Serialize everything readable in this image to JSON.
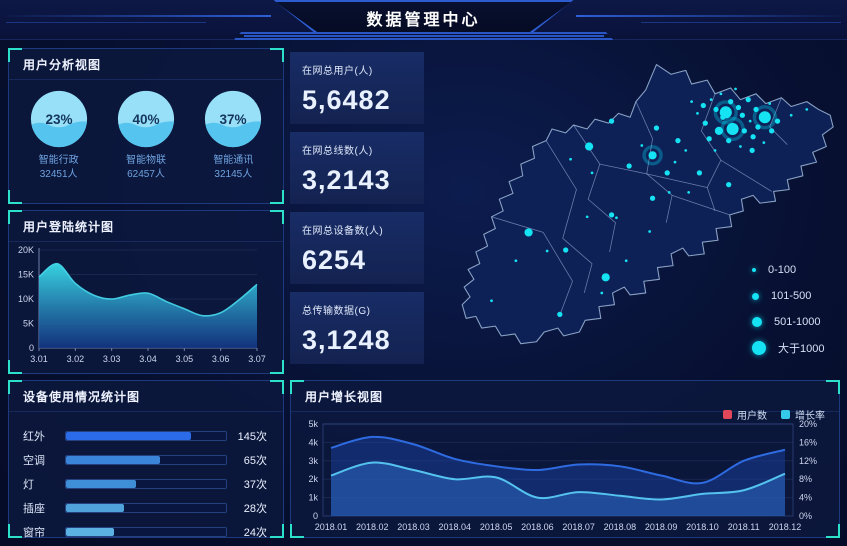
{
  "header": {
    "title": "数据管理中心"
  },
  "panels": {
    "user_analysis": {
      "title": "用户分析视图",
      "gauges": [
        {
          "percent": "23%",
          "name": "智能行政",
          "count": "32451人"
        },
        {
          "percent": "40%",
          "name": "智能物联",
          "count": "62457人"
        },
        {
          "percent": "37%",
          "name": "智能通讯",
          "count": "32145人"
        }
      ],
      "circle_color_top": "#97e0f7",
      "circle_color_wave": "#55c4ee",
      "percent_text_color": "#14365f"
    },
    "login_stats": {
      "title": "用户登陆统计图"
    },
    "device_usage": {
      "title": "设备使用情况统计图"
    },
    "user_growth": {
      "title": "用户增长视图",
      "legend": [
        {
          "label": "用户数",
          "color": "#e0485a"
        },
        {
          "label": "增长率",
          "color": "#35c8e8"
        }
      ]
    }
  },
  "stats": [
    {
      "label": "在网总用户(人)",
      "value": "5,6482"
    },
    {
      "label": "在网总线数(人)",
      "value": "3,2143"
    },
    {
      "label": "在网总设备数(人)",
      "value": "6254"
    },
    {
      "label": "总传输数据(G)",
      "value": "3,1248"
    }
  ],
  "map": {
    "dot_color": "#15e2f2",
    "legend": [
      {
        "label": "0-100",
        "r": 2
      },
      {
        "label": "101-500",
        "r": 3.5
      },
      {
        "label": "501-1000",
        "r": 5
      },
      {
        "label": "大于1000",
        "r": 7
      }
    ],
    "points": [
      [
        268,
        58,
        1
      ],
      [
        274,
        70,
        1
      ],
      [
        280,
        62,
        2
      ],
      [
        282,
        80,
        2
      ],
      [
        286,
        96,
        2
      ],
      [
        288,
        56,
        1
      ],
      [
        292,
        108,
        1
      ],
      [
        293,
        66,
        2
      ],
      [
        296,
        88,
        3
      ],
      [
        298,
        50,
        1
      ],
      [
        300,
        74,
        2
      ],
      [
        303,
        69,
        4,
        1
      ],
      [
        306,
        98,
        2
      ],
      [
        308,
        58,
        2
      ],
      [
        310,
        86,
        4,
        1
      ],
      [
        313,
        45,
        1
      ],
      [
        316,
        64,
        2
      ],
      [
        318,
        104,
        1
      ],
      [
        320,
        72,
        2
      ],
      [
        322,
        88,
        2
      ],
      [
        326,
        56,
        2
      ],
      [
        328,
        78,
        1
      ],
      [
        330,
        108,
        2
      ],
      [
        331,
        94,
        2
      ],
      [
        334,
        66,
        2
      ],
      [
        336,
        84,
        2
      ],
      [
        342,
        100,
        1
      ],
      [
        343,
        74,
        4,
        1
      ],
      [
        348,
        60,
        1
      ],
      [
        350,
        88,
        2
      ],
      [
        356,
        78,
        2
      ],
      [
        370,
        72,
        1
      ],
      [
        386,
        66,
        1
      ],
      [
        186,
        78,
        2
      ],
      [
        217,
        103,
        1
      ],
      [
        228,
        113,
        3,
        1
      ],
      [
        232,
        85,
        2
      ],
      [
        254,
        98,
        2
      ],
      [
        262,
        108,
        1
      ],
      [
        251,
        120,
        1
      ],
      [
        163,
        104,
        3
      ],
      [
        144,
        117,
        1
      ],
      [
        166,
        131,
        1
      ],
      [
        204,
        124,
        2
      ],
      [
        243,
        131,
        2
      ],
      [
        276,
        131,
        2
      ],
      [
        306,
        143,
        2
      ],
      [
        228,
        157,
        2
      ],
      [
        245,
        151,
        1
      ],
      [
        265,
        151,
        1
      ],
      [
        186,
        174,
        2
      ],
      [
        191,
        177,
        1
      ],
      [
        161,
        176,
        1
      ],
      [
        225,
        191,
        1
      ],
      [
        101,
        192,
        3
      ],
      [
        120,
        211,
        1
      ],
      [
        139,
        210,
        2
      ],
      [
        88,
        221,
        1
      ],
      [
        201,
        221,
        1
      ],
      [
        180,
        238,
        3
      ],
      [
        176,
        254,
        1
      ],
      [
        63,
        262,
        1
      ],
      [
        133,
        276,
        2
      ]
    ]
  },
  "chart_data": [
    {
      "id": "login",
      "type": "area",
      "title": "用户登陆统计图",
      "x_labels": [
        "3.01",
        "3.02",
        "3.03",
        "3.04",
        "3.05",
        "3.06",
        "3.07"
      ],
      "x_numeric": [
        0,
        0.5,
        1,
        1.5,
        2,
        2.5,
        3,
        3.5,
        4,
        4.5,
        5,
        5.5,
        6
      ],
      "values_k": [
        14.5,
        17.2,
        13.2,
        10.8,
        10.0,
        10.8,
        11.2,
        9.5,
        8.0,
        6.6,
        7.2,
        9.8,
        13.0
      ],
      "ylim": [
        0,
        20
      ],
      "yticks": [
        "0",
        "5K",
        "10K",
        "15K",
        "20K"
      ],
      "grid": true,
      "line_color": "#46d8ec",
      "fill_top": "rgba(58,219,232,0.95)",
      "fill_bottom": "rgba(20,55,135,0.85)"
    },
    {
      "id": "device",
      "type": "bar",
      "orientation": "horizontal",
      "title": "设备使用情况统计图",
      "categories": [
        "红外",
        "空调",
        "灯",
        "插座",
        "窗帘"
      ],
      "values": [
        145,
        65,
        37,
        28,
        24
      ],
      "unit": "次",
      "value_labels": [
        "145次",
        "65次",
        "37次",
        "28次",
        "24次"
      ],
      "fill_pct": [
        78,
        59,
        44,
        36,
        30
      ],
      "colors": [
        "#2b6ae8",
        "#3a85da",
        "#3f8ed8",
        "#4fa3da",
        "#5ab1e2"
      ]
    },
    {
      "id": "growth",
      "type": "area",
      "title": "用户增长视图",
      "categories": [
        "2018.01",
        "2018.02",
        "2018.03",
        "2018.04",
        "2018.05",
        "2018.06",
        "2018.07",
        "2018.08",
        "2018.09",
        "2018.10",
        "2018.11",
        "2018.12"
      ],
      "series": [
        {
          "name": "用户数",
          "values_k": [
            3.7,
            4.3,
            3.9,
            3.1,
            2.7,
            2.5,
            2.8,
            2.7,
            2.2,
            1.8,
            3.0,
            3.6
          ],
          "line_color": "#2e6ae0",
          "fill_color": "rgba(25,64,160,0.50)",
          "axis": "left"
        },
        {
          "name": "增长率",
          "values_pct": [
            8.8,
            11.6,
            10.0,
            8.0,
            8.4,
            4.0,
            5.2,
            4.4,
            3.6,
            4.8,
            5.6,
            9.2
          ],
          "line_color": "#55c3ef",
          "fill_color": "rgba(45,110,200,0.48)",
          "axis": "right"
        }
      ],
      "ylim_left": [
        0,
        5
      ],
      "ylim_right": [
        0,
        20
      ],
      "yticks_left": [
        "0",
        "1k",
        "2k",
        "3k",
        "4k",
        "5k"
      ],
      "yticks_right": [
        "0%",
        "4%",
        "8%",
        "12%",
        "16%",
        "20%"
      ],
      "legend_position": "top-right",
      "grid": true
    }
  ]
}
